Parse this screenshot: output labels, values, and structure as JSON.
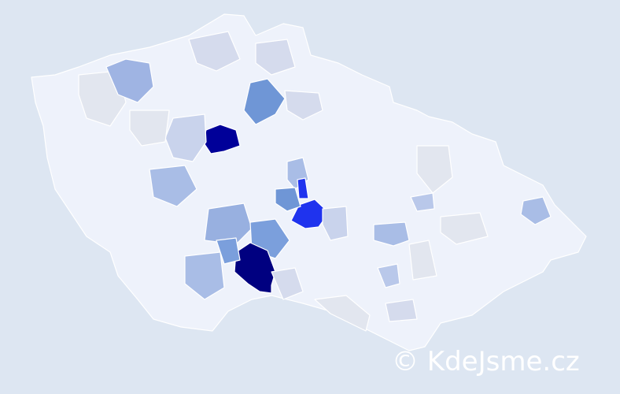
{
  "watermark": "© KdeJsme.cz"
}
